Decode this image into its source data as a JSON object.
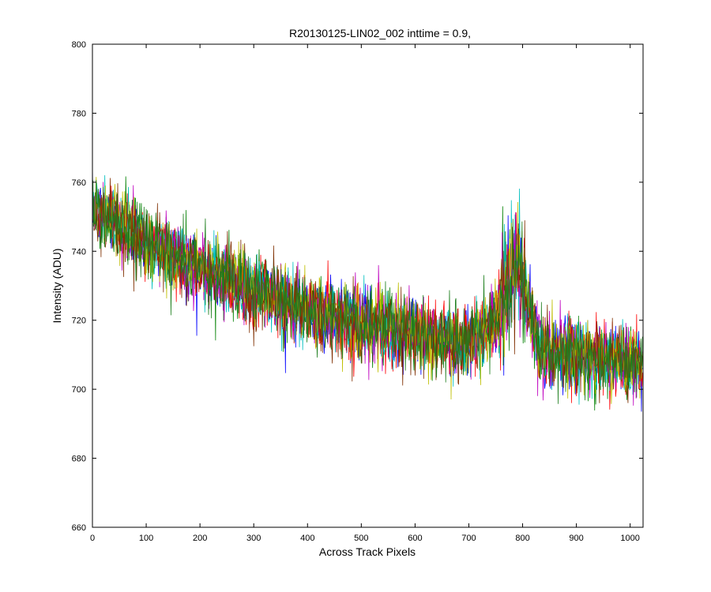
{
  "chart_data": {
    "type": "line",
    "title": "R20130125-LIN02_002 inttime = 0.9,",
    "xlabel": "Across Track Pixels",
    "ylabel": "Intensity (ADU)",
    "xlim": [
      0,
      1024
    ],
    "ylim": [
      660,
      800
    ],
    "xticks": [
      0,
      100,
      200,
      300,
      400,
      500,
      600,
      700,
      800,
      900,
      1000
    ],
    "yticks": [
      660,
      680,
      700,
      720,
      740,
      760,
      780,
      800
    ],
    "grid": false,
    "legend": "none",
    "series_colors": [
      "#0000ff",
      "#008000",
      "#ff0000",
      "#00bfbf",
      "#bf00bf",
      "#bfbf00",
      "#7f2f00",
      "#1f7f1f"
    ],
    "trend": {
      "x": [
        0,
        50,
        100,
        150,
        200,
        300,
        400,
        500,
        600,
        700,
        750,
        790,
        830,
        900,
        1000,
        1024
      ],
      "y": [
        752,
        748,
        743,
        739,
        735,
        729,
        723,
        719,
        716,
        713,
        720,
        738,
        712,
        710,
        708,
        707
      ]
    },
    "noise_amplitude_adu": 9,
    "samples_per_series": 1024
  }
}
